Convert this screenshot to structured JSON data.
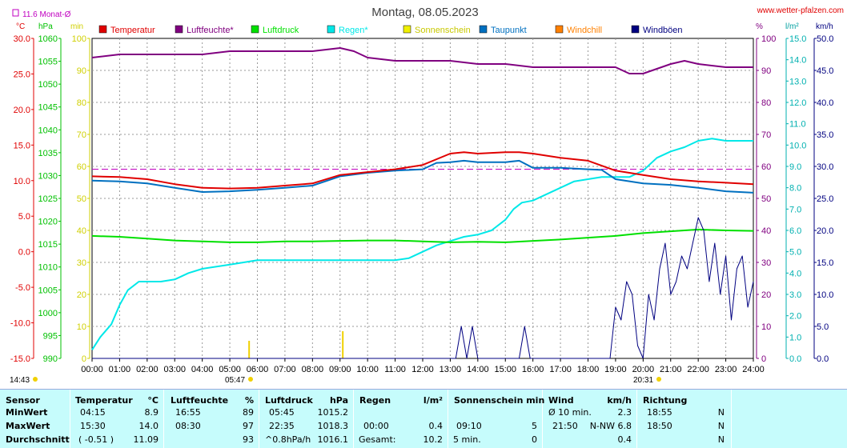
{
  "title": "Montag, 08.05.2023",
  "site": "www.wetter-pfalzen.com",
  "monthavg_label": "11.6 Monat-Ø",
  "axis_units": {
    "temp": "°C",
    "pressure": "hPa",
    "min": "min",
    "hum": "%",
    "rain": "l/m²",
    "wind": "km/h"
  },
  "legend": [
    {
      "name": "Temperatur",
      "color": "#e00000"
    },
    {
      "name": "Luftfeuchte*",
      "color": "#800080"
    },
    {
      "name": "Luftdruck",
      "color": "#00e000"
    },
    {
      "name": "Regen*",
      "color": "#00e8e8"
    },
    {
      "name": "Sonnenschein",
      "color": "#f0f000"
    },
    {
      "name": "Taupunkt",
      "color": "#0070c0"
    },
    {
      "name": "Windchill",
      "color": "#ff8000"
    },
    {
      "name": "Windböen",
      "color": "#000080"
    }
  ],
  "sunrise": "05:47",
  "sunset": "20:31",
  "bottom_left_time": "14:43",
  "chart_data": {
    "type": "line",
    "x_labels": [
      "00:00",
      "01:00",
      "02:00",
      "03:00",
      "04:00",
      "05:00",
      "06:00",
      "07:00",
      "08:00",
      "09:00",
      "10:00",
      "11:00",
      "12:00",
      "13:00",
      "14:00",
      "15:00",
      "16:00",
      "17:00",
      "18:00",
      "19:00",
      "20:00",
      "21:00",
      "22:00",
      "23:00",
      "24:00"
    ],
    "y_axes": {
      "temperature": {
        "unit": "°C",
        "ticks": [
          "30.0",
          "25.0",
          "20.0",
          "15.0",
          "10.0",
          "5.0",
          "0.0",
          "-5.0",
          "-10.0",
          "-15.0"
        ],
        "range": [
          -15,
          30
        ]
      },
      "pressure": {
        "unit": "hPa",
        "ticks": [
          "1060",
          "1055",
          "1050",
          "1045",
          "1040",
          "1035",
          "1030",
          "1025",
          "1020",
          "1015",
          "1010",
          "1005",
          "1000",
          "995",
          "990"
        ],
        "range": [
          990,
          1060
        ]
      },
      "minutes": {
        "unit": "min",
        "ticks": [
          "100",
          "90",
          "80",
          "70",
          "60",
          "50",
          "40",
          "30",
          "20",
          "10",
          "0"
        ],
        "range": [
          0,
          100
        ]
      },
      "humidity": {
        "unit": "%",
        "ticks": [
          "100",
          "90",
          "80",
          "70",
          "60",
          "50",
          "40",
          "30",
          "20",
          "10",
          "0"
        ],
        "range": [
          0,
          100
        ]
      },
      "rain": {
        "unit": "l/m²",
        "ticks": [
          "15.0",
          "14.0",
          "13.0",
          "12.0",
          "11.0",
          "10.0",
          "9.0",
          "8.0",
          "7.0",
          "6.0",
          "5.0",
          "4.0",
          "3.0",
          "2.0",
          "1.0",
          "0.0"
        ],
        "range": [
          0,
          15
        ]
      },
      "wind": {
        "unit": "km/h",
        "ticks": [
          "50.0",
          "45.0",
          "40.0",
          "35.0",
          "30.0",
          "25.0",
          "20.0",
          "15.0",
          "10.0",
          "5.0",
          "0.0"
        ],
        "range": [
          0,
          50
        ]
      }
    },
    "month_avg_temp": 11.6,
    "series": [
      {
        "name": "Temperatur",
        "axis": "temperature",
        "color": "#e00000",
        "x": [
          0,
          1,
          2,
          3,
          4,
          5,
          6,
          7,
          8,
          9,
          10,
          11,
          12,
          13,
          13.5,
          14,
          15,
          15.5,
          16,
          17,
          18,
          19,
          20,
          21,
          22,
          23,
          24
        ],
        "y": [
          10.6,
          10.5,
          10.2,
          9.5,
          9.0,
          8.9,
          9.0,
          9.3,
          9.6,
          10.8,
          11.2,
          11.6,
          12.2,
          13.8,
          14.0,
          13.8,
          14.0,
          14.0,
          13.8,
          13.2,
          12.8,
          11.4,
          10.8,
          10.2,
          9.9,
          9.7,
          9.5
        ]
      },
      {
        "name": "Luftfeuchte*",
        "axis": "humidity",
        "color": "#800080",
        "x": [
          0,
          1,
          2,
          3,
          4,
          5,
          6,
          7,
          8,
          9,
          9.5,
          10,
          11,
          12,
          13,
          14,
          15,
          16,
          17,
          18,
          19,
          19.5,
          20,
          21,
          21.5,
          22,
          23,
          24
        ],
        "y": [
          94,
          95,
          95,
          95,
          95,
          96,
          96,
          96,
          96,
          97,
          96,
          94,
          93,
          93,
          93,
          92,
          92,
          91,
          91,
          91,
          91,
          89,
          89,
          92,
          93,
          92,
          91,
          91
        ]
      },
      {
        "name": "Luftdruck",
        "axis": "pressure",
        "color": "#00e000",
        "x": [
          0,
          1,
          2,
          3,
          4,
          5,
          6,
          7,
          8,
          9,
          10,
          11,
          12,
          13,
          14,
          15,
          16,
          17,
          18,
          19,
          20,
          21,
          22,
          23,
          24
        ],
        "y": [
          1016.8,
          1016.6,
          1016.2,
          1015.8,
          1015.6,
          1015.4,
          1015.4,
          1015.6,
          1015.6,
          1015.7,
          1015.8,
          1015.8,
          1015.6,
          1015.4,
          1015.5,
          1015.4,
          1015.7,
          1016.0,
          1016.4,
          1016.8,
          1017.4,
          1017.8,
          1018.2,
          1018.0,
          1017.9
        ]
      },
      {
        "name": "Regen*",
        "axis": "rain",
        "color": "#00e8e8",
        "x": [
          0,
          0.3,
          0.7,
          1,
          1.3,
          1.7,
          2,
          2.5,
          3,
          3.5,
          4,
          5,
          6,
          7,
          8,
          9,
          10,
          11,
          11.5,
          12,
          12.5,
          13,
          13.5,
          14,
          14.5,
          15,
          15.3,
          15.6,
          16,
          16.5,
          17,
          17.5,
          18,
          18.5,
          19,
          19.5,
          20,
          20.5,
          21,
          21.5,
          22,
          22.5,
          23,
          24
        ],
        "y": [
          0.4,
          1.0,
          1.6,
          2.5,
          3.2,
          3.6,
          3.6,
          3.6,
          3.7,
          4.0,
          4.2,
          4.4,
          4.6,
          4.6,
          4.6,
          4.6,
          4.6,
          4.6,
          4.7,
          5.0,
          5.3,
          5.5,
          5.7,
          5.8,
          6.0,
          6.5,
          7.0,
          7.3,
          7.4,
          7.7,
          8.0,
          8.3,
          8.4,
          8.5,
          8.5,
          8.5,
          8.8,
          9.4,
          9.7,
          9.9,
          10.2,
          10.3,
          10.2,
          10.2
        ]
      },
      {
        "name": "Taupunkt",
        "axis": "temperature",
        "color": "#0070c0",
        "x": [
          0,
          1,
          2,
          3,
          4,
          5,
          6,
          7,
          8,
          9,
          10,
          11,
          12,
          12.5,
          13,
          13.5,
          14,
          15,
          15.5,
          16,
          17,
          18,
          18.5,
          19,
          20,
          21,
          22,
          23,
          24
        ],
        "y": [
          10.0,
          9.9,
          9.6,
          9.0,
          8.4,
          8.5,
          8.7,
          9.0,
          9.3,
          10.6,
          11.1,
          11.4,
          11.6,
          12.5,
          12.6,
          12.8,
          12.6,
          12.6,
          12.8,
          11.8,
          11.8,
          11.6,
          11.5,
          10.2,
          9.6,
          9.4,
          9.0,
          8.5,
          8.3
        ]
      },
      {
        "name": "Windböen",
        "axis": "wind",
        "color": "#000080",
        "x": [
          0,
          13.2,
          13.4,
          13.6,
          13.8,
          14,
          14.1,
          15.5,
          15.7,
          15.9,
          18.8,
          19.0,
          19.2,
          19.4,
          19.6,
          19.8,
          20.0,
          20.2,
          20.4,
          20.6,
          20.8,
          21.0,
          21.2,
          21.4,
          21.6,
          21.8,
          22.0,
          22.2,
          22.4,
          22.6,
          22.8,
          23.0,
          23.2,
          23.4,
          23.6,
          23.8,
          24
        ],
        "y": [
          0,
          0,
          5,
          0,
          5,
          0,
          0,
          0,
          5,
          0,
          0,
          8,
          6,
          12,
          10,
          2,
          0,
          10,
          6,
          14,
          18,
          10,
          12,
          16,
          14,
          18,
          22,
          20,
          12,
          18,
          10,
          16,
          6,
          14,
          16,
          8,
          12
        ]
      }
    ],
    "sunshine_bars": [
      {
        "time": 5.7,
        "minutes": 2
      },
      {
        "time": 9.1,
        "minutes": 5
      }
    ]
  },
  "table": {
    "sensor": {
      "title": "Sensor",
      "rows": [
        "MinWert",
        "MaxWert",
        "Durchschnitt"
      ]
    },
    "temperature": {
      "title": "Temperatur",
      "unit": "°C",
      "rows": [
        [
          "04:15",
          "8.9"
        ],
        [
          "15:30",
          "14.0"
        ],
        [
          "( -0.51 )",
          "11.09"
        ]
      ]
    },
    "humidity": {
      "title": "Luftfeuchte",
      "unit": "%",
      "rows": [
        [
          "16:55",
          "89"
        ],
        [
          "08:30",
          "97"
        ],
        [
          "",
          "93"
        ]
      ]
    },
    "pressure": {
      "title": "Luftdruck",
      "unit": "hPa",
      "rows": [
        [
          "05:45",
          "1015.2"
        ],
        [
          "22:35",
          "1018.3"
        ],
        [
          "^0.8hPa/h",
          "1016.1"
        ]
      ]
    },
    "rain": {
      "title": "Regen",
      "unit": "l/m²",
      "rows": [
        [
          "",
          ""
        ],
        [
          "00:00",
          "0.4"
        ],
        [
          "Gesamt:",
          "10.2"
        ]
      ]
    },
    "sunshine": {
      "title": "Sonnenschein min",
      "rows": [
        [
          "",
          ""
        ],
        [
          "09:10",
          "5"
        ],
        [
          "5 min.",
          "0"
        ]
      ]
    },
    "wind": {
      "title": "Wind",
      "unit": "km/h",
      "rows": [
        [
          "Ø 10 min.",
          "2.3"
        ],
        [
          "21:50",
          "N-NW 6.8"
        ],
        [
          "",
          "0.4"
        ]
      ]
    },
    "direction": {
      "title": "Richtung",
      "rows": [
        [
          "18:55",
          "N"
        ],
        [
          "18:50",
          "N"
        ],
        [
          "",
          "N"
        ]
      ]
    }
  }
}
